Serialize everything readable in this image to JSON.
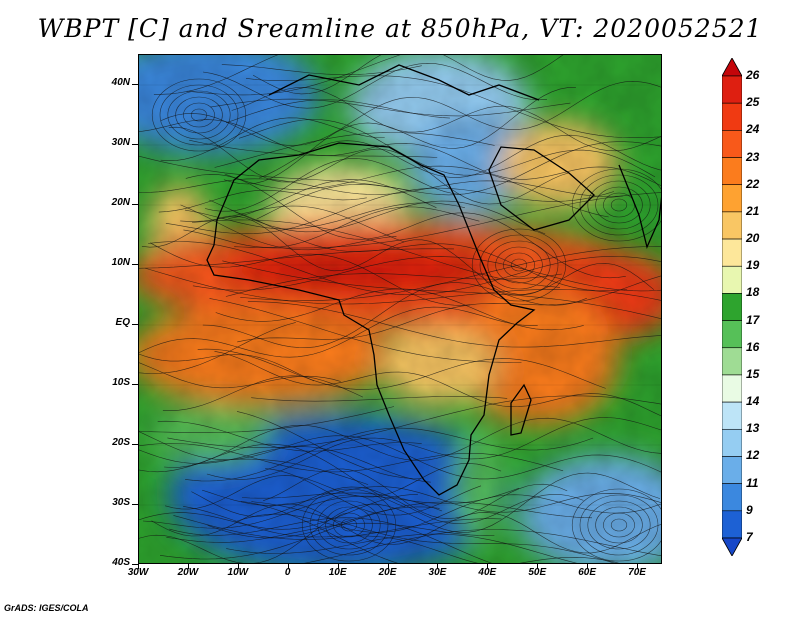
{
  "title": "WBPT [C] and Sreamline at 850hPa, VT: 2020052521",
  "map": {
    "lat_labels": [
      "40N",
      "30N",
      "20N",
      "10N",
      "EQ",
      "10S",
      "20S",
      "30S",
      "40S"
    ],
    "lon_labels": [
      "30W",
      "20W",
      "10W",
      "0",
      "10E",
      "20E",
      "30E",
      "40E",
      "50E",
      "60E",
      "70E"
    ],
    "lat_range": [
      -40,
      45
    ],
    "lon_range": [
      -30,
      75
    ]
  },
  "colorbar": {
    "levels": [
      "26",
      "25",
      "24",
      "23",
      "22",
      "21",
      "20",
      "19",
      "18",
      "17",
      "16",
      "15",
      "14",
      "13",
      "12",
      "11",
      "9",
      "7"
    ],
    "colors": [
      "#c4050a",
      "#de1f11",
      "#f03a12",
      "#f8591a",
      "#fb7c1d",
      "#fea231",
      "#f9c664",
      "#fde79a",
      "#e8f7b0",
      "#2ea42e",
      "#56c058",
      "#9fdc94",
      "#e9fbe4",
      "#bde4f7",
      "#95cdf2",
      "#6aaee9",
      "#3b88df",
      "#1d61d4",
      "#1647c8"
    ]
  },
  "footer": "GrADS: IGES/COLA"
}
